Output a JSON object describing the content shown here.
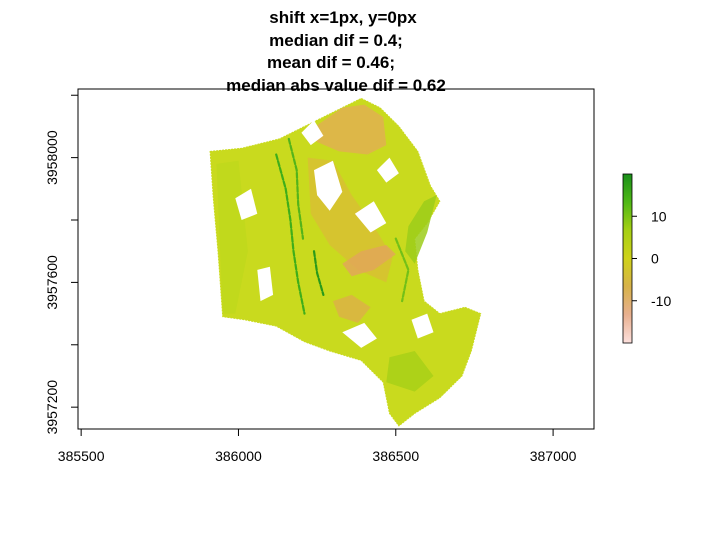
{
  "chart_data": {
    "type": "heatmap",
    "title_lines": [
      "shift x=1px, y=0px",
      "median dif = 0.4;",
      "mean dif = 0.46;",
      "median abs value dif = 0.62"
    ],
    "xlabel": "",
    "ylabel": "",
    "xlim": [
      385490,
      387130
    ],
    "ylim": [
      3957130,
      3958220
    ],
    "x_ticks": [
      385500,
      386000,
      386500,
      387000
    ],
    "y_ticks": [
      3957200,
      3957600,
      3958000
    ],
    "colorbar": {
      "range": [
        -20,
        20
      ],
      "ticks": [
        10,
        0,
        -10
      ],
      "colors": [
        "#fde0dd",
        "#e8b090",
        "#d7b24a",
        "#cfd21a",
        "#a6d014",
        "#4fb816",
        "#1a8f1a"
      ]
    },
    "raster_outline": [
      [
        385910,
        3958020
      ],
      [
        386010,
        3958030
      ],
      [
        386130,
        3958060
      ],
      [
        386250,
        3958120
      ],
      [
        386330,
        3958160
      ],
      [
        386390,
        3958190
      ],
      [
        386450,
        3958160
      ],
      [
        386510,
        3958100
      ],
      [
        386570,
        3958020
      ],
      [
        386610,
        3957910
      ],
      [
        386640,
        3957860
      ],
      [
        386600,
        3957790
      ],
      [
        386560,
        3957740
      ],
      [
        386570,
        3957640
      ],
      [
        386590,
        3957540
      ],
      [
        386640,
        3957500
      ],
      [
        386720,
        3957520
      ],
      [
        386770,
        3957500
      ],
      [
        386740,
        3957380
      ],
      [
        386710,
        3957300
      ],
      [
        386640,
        3957230
      ],
      [
        386560,
        3957180
      ],
      [
        386510,
        3957140
      ],
      [
        386480,
        3957180
      ],
      [
        386460,
        3957280
      ],
      [
        386390,
        3957350
      ],
      [
        386290,
        3957380
      ],
      [
        386210,
        3957410
      ],
      [
        386120,
        3957460
      ],
      [
        386020,
        3957480
      ],
      [
        385950,
        3957490
      ],
      [
        385935,
        3957700
      ],
      [
        385920,
        3957870
      ]
    ],
    "raster_base_color": "#c9da1e",
    "regions": [
      {
        "value": -6,
        "color": "#e0b050",
        "polygon": [
          [
            386230,
            3958090
          ],
          [
            386330,
            3958160
          ],
          [
            386400,
            3958170
          ],
          [
            386460,
            3958130
          ],
          [
            386470,
            3958040
          ],
          [
            386410,
            3958010
          ],
          [
            386320,
            3958020
          ],
          [
            386250,
            3958050
          ]
        ]
      },
      {
        "value": -3,
        "color": "#d8c033",
        "polygon": [
          [
            386220,
            3958000
          ],
          [
            386300,
            3957990
          ],
          [
            386360,
            3957880
          ],
          [
            386430,
            3957780
          ],
          [
            386490,
            3957680
          ],
          [
            386470,
            3957600
          ],
          [
            386380,
            3957640
          ],
          [
            386290,
            3957720
          ],
          [
            386230,
            3957820
          ]
        ]
      },
      {
        "value": -9,
        "color": "#e2a758",
        "polygon": [
          [
            386330,
            3957660
          ],
          [
            386390,
            3957700
          ],
          [
            386470,
            3957720
          ],
          [
            386500,
            3957690
          ],
          [
            386430,
            3957640
          ],
          [
            386360,
            3957620
          ]
        ]
      },
      {
        "value": -4,
        "color": "#dcb245",
        "polygon": [
          [
            386300,
            3957540
          ],
          [
            386360,
            3957560
          ],
          [
            386420,
            3957520
          ],
          [
            386380,
            3957470
          ],
          [
            386320,
            3957490
          ]
        ]
      },
      {
        "value": 6,
        "color": "#9ccc1a",
        "polygon": [
          [
            386540,
            3957780
          ],
          [
            386590,
            3957860
          ],
          [
            386630,
            3957880
          ],
          [
            386600,
            3957760
          ],
          [
            386560,
            3957660
          ],
          [
            386530,
            3957700
          ]
        ]
      },
      {
        "value": 5,
        "color": "#a8d018",
        "polygon": [
          [
            386470,
            3957280
          ],
          [
            386560,
            3957250
          ],
          [
            386620,
            3957300
          ],
          [
            386560,
            3957380
          ],
          [
            386480,
            3957360
          ]
        ]
      },
      {
        "value": 2,
        "color": "#bfd81c",
        "polygon": [
          [
            385930,
            3957980
          ],
          [
            386000,
            3957990
          ],
          [
            386030,
            3957700
          ],
          [
            385990,
            3957500
          ],
          [
            385950,
            3957500
          ]
        ]
      }
    ],
    "streaks": [
      {
        "value": 14,
        "color": "#3fae1a",
        "points": [
          [
            386120,
            3958010
          ],
          [
            386150,
            3957900
          ],
          [
            386165,
            3957800
          ],
          [
            386175,
            3957700
          ],
          [
            386190,
            3957600
          ],
          [
            386210,
            3957500
          ]
        ]
      },
      {
        "value": 12,
        "color": "#54b41a",
        "points": [
          [
            386160,
            3958060
          ],
          [
            386185,
            3957960
          ],
          [
            386190,
            3957850
          ],
          [
            386205,
            3957740
          ]
        ]
      },
      {
        "value": 16,
        "color": "#2a9a1a",
        "points": [
          [
            386240,
            3957700
          ],
          [
            386250,
            3957630
          ],
          [
            386270,
            3957560
          ]
        ]
      },
      {
        "value": 10,
        "color": "#72c018",
        "points": [
          [
            386500,
            3957740
          ],
          [
            386540,
            3957640
          ],
          [
            386520,
            3957540
          ]
        ]
      }
    ],
    "holes": [
      [
        [
          386240,
          3957960
        ],
        [
          386300,
          3957990
        ],
        [
          386330,
          3957890
        ],
        [
          386290,
          3957830
        ],
        [
          386250,
          3957880
        ]
      ],
      [
        [
          386370,
          3957820
        ],
        [
          386430,
          3957860
        ],
        [
          386470,
          3957790
        ],
        [
          386420,
          3957760
        ]
      ],
      [
        [
          386060,
          3957640
        ],
        [
          386100,
          3957650
        ],
        [
          386110,
          3957560
        ],
        [
          386070,
          3957540
        ]
      ],
      [
        [
          386330,
          3957440
        ],
        [
          386400,
          3957470
        ],
        [
          386440,
          3957420
        ],
        [
          386390,
          3957390
        ]
      ],
      [
        [
          386550,
          3957480
        ],
        [
          386600,
          3957500
        ],
        [
          386620,
          3957440
        ],
        [
          386570,
          3957420
        ]
      ],
      [
        [
          385990,
          3957870
        ],
        [
          386040,
          3957900
        ],
        [
          386060,
          3957820
        ],
        [
          386010,
          3957800
        ]
      ],
      [
        [
          386440,
          3957960
        ],
        [
          386480,
          3958000
        ],
        [
          386510,
          3957950
        ],
        [
          386470,
          3957920
        ]
      ],
      [
        [
          386200,
          3958080
        ],
        [
          386240,
          3958120
        ],
        [
          386270,
          3958070
        ],
        [
          386230,
          3958040
        ]
      ]
    ]
  }
}
